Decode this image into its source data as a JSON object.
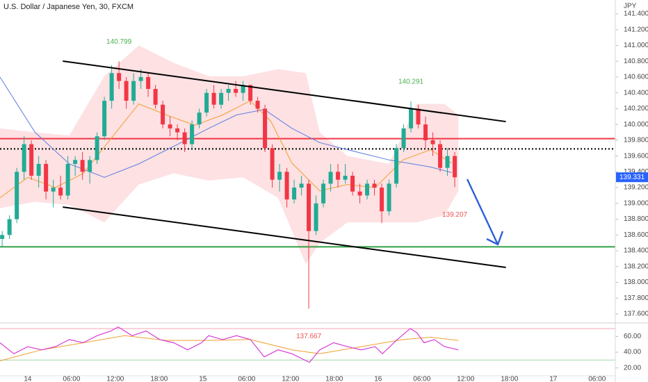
{
  "chart_data": [
    {
      "type": "candlestick",
      "title": "U.S. Dollar / Japanese Yen, 30, FXCM",
      "y_unit": "JPY",
      "x": [
        -3.5,
        -2.5,
        -1.5,
        -0.5,
        0.5,
        1.5,
        2.5,
        3.5,
        4.5,
        5.5,
        6.5,
        7.5,
        8.5,
        9.5,
        10.5,
        11.5,
        12.5,
        13.5,
        14.5,
        15.5,
        16.5,
        17.5,
        18.5,
        19.5,
        20.5,
        21.5,
        22.5,
        23.5,
        24.5,
        25.5,
        26.5,
        27.5,
        28.5,
        29.5,
        30.5,
        31.5,
        32.5,
        33.5,
        34.5,
        35.5,
        36.5,
        37.5,
        38.5,
        39.5,
        40.5,
        41.5,
        42.5,
        43.5,
        44.5,
        45.5,
        46.5,
        47.5,
        48.5,
        49.5,
        50.5,
        51.5,
        52.5,
        53.5,
        54.5,
        55.5,
        56.5,
        57.5,
        58.5
      ],
      "open": [
        138.55,
        138.6,
        138.8,
        139.4,
        139.75,
        139.35,
        139.5,
        139.15,
        139.2,
        139.1,
        139.5,
        139.55,
        139.4,
        139.55,
        139.85,
        140.3,
        140.65,
        140.55,
        140.3,
        140.55,
        140.6,
        140.45,
        140.25,
        140,
        139.95,
        139.9,
        139.75,
        140,
        140.15,
        140.4,
        140.25,
        140.4,
        140.45,
        140.4,
        140.5,
        140.3,
        140.2,
        139.7,
        139.3,
        139.4,
        139.05,
        139.2,
        139.25,
        138.65,
        139,
        139.25,
        139.4,
        139.3,
        139.35,
        139.15,
        139.1,
        139.25,
        139.2,
        138.9,
        139.25,
        139.7,
        139.95,
        140.2,
        140,
        139.8,
        139.75,
        139.45,
        139.6
      ],
      "high": [
        138.65,
        138.85,
        139.45,
        139.85,
        139.8,
        139.6,
        139.55,
        139.3,
        139.35,
        139.6,
        139.6,
        139.65,
        139.6,
        139.9,
        140.35,
        140.75,
        140.799,
        140.6,
        140.65,
        140.7,
        140.65,
        140.5,
        140.3,
        140.1,
        140,
        139.95,
        140.05,
        140.2,
        140.45,
        140.5,
        140.45,
        140.5,
        140.55,
        140.55,
        140.5,
        140.35,
        140.25,
        139.75,
        139.5,
        139.45,
        139.3,
        139.35,
        139.3,
        139.1,
        139.3,
        139.5,
        139.5,
        139.5,
        139.4,
        139.25,
        139.3,
        139.3,
        139.25,
        139.3,
        139.75,
        140,
        140.291,
        140.25,
        140.1,
        139.9,
        139.8,
        139.7,
        139.65
      ],
      "low": [
        138.45,
        138.55,
        138.75,
        139.3,
        139.3,
        139.2,
        139.05,
        138.95,
        139.05,
        139.05,
        139.35,
        139.3,
        139.25,
        139.5,
        139.8,
        140.2,
        140.45,
        140.2,
        140.25,
        140.45,
        140.35,
        140.2,
        139.95,
        139.85,
        139.8,
        139.65,
        139.7,
        139.95,
        140.1,
        140.2,
        140.2,
        140.3,
        140.35,
        140.3,
        140.25,
        140.15,
        139.65,
        139.2,
        139.15,
        138.95,
        139,
        139.1,
        137.667,
        138.6,
        138.95,
        139.15,
        139.2,
        139.25,
        139.1,
        139,
        139.05,
        139.1,
        138.75,
        138.85,
        139.2,
        139.65,
        139.9,
        139.95,
        139.7,
        139.6,
        139.4,
        139.35,
        139.207
      ],
      "close": [
        138.6,
        138.8,
        139.4,
        139.75,
        139.35,
        139.5,
        139.15,
        139.2,
        139.1,
        139.5,
        139.55,
        139.4,
        139.55,
        139.85,
        140.3,
        140.65,
        140.55,
        140.3,
        140.55,
        140.6,
        140.45,
        140.25,
        140,
        139.95,
        139.9,
        139.75,
        140,
        140.15,
        140.4,
        140.25,
        140.4,
        140.45,
        140.4,
        140.5,
        140.3,
        140.2,
        139.7,
        139.3,
        139.4,
        139.05,
        139.2,
        139.25,
        138.65,
        139,
        139.25,
        139.4,
        139.3,
        139.35,
        139.15,
        139.1,
        139.25,
        139.2,
        138.9,
        139.25,
        139.7,
        139.95,
        140.2,
        140,
        139.8,
        139.75,
        139.45,
        139.6,
        139.331
      ],
      "up_color": "#22ab94",
      "down_color": "#f23645",
      "last_price_color": "#2962ff",
      "xlim": [
        -3.8,
        80.5
      ],
      "ylim": [
        137.512,
        141.576
      ],
      "grid": false,
      "yticks": [
        {
          "value": 137.6,
          "label": "137.600"
        },
        {
          "value": 137.8,
          "label": "137.800"
        },
        {
          "value": 138,
          "label": "138.000"
        },
        {
          "value": 138.2,
          "label": "138.200"
        },
        {
          "value": 138.4,
          "label": "138.400"
        },
        {
          "value": 138.6,
          "label": "138.600"
        },
        {
          "value": 138.8,
          "label": "138.800"
        },
        {
          "value": 139,
          "label": "139.000"
        },
        {
          "value": 139.2,
          "label": "139.200"
        },
        {
          "value": 139.4,
          "label": "139.400"
        },
        {
          "value": 139.6,
          "label": "139.600"
        },
        {
          "value": 139.8,
          "label": "139.800"
        },
        {
          "value": 140,
          "label": "140.000"
        },
        {
          "value": 140.2,
          "label": "140.200"
        },
        {
          "value": 140.4,
          "label": "140.400"
        },
        {
          "value": 140.6,
          "label": "140.600"
        },
        {
          "value": 140.8,
          "label": "140.800"
        },
        {
          "value": 141,
          "label": "141.000"
        },
        {
          "value": 141.2,
          "label": "141.200"
        },
        {
          "value": 141.4,
          "label": "141.400"
        }
      ],
      "band": {
        "color": "#fde1e3",
        "x": [
          -3.8,
          1,
          5.7,
          10.5,
          15.2,
          20,
          24.8,
          29.5,
          34.3,
          38.1,
          40,
          43.8,
          49.5,
          53.3,
          57.1,
          59
        ],
        "upper": [
          139.95,
          139.9,
          139.86,
          140.61,
          141.0,
          140.78,
          140.61,
          140.61,
          140.7,
          140.65,
          139.9,
          139.6,
          139.5,
          140.26,
          140.26,
          140.12
        ],
        "lower": [
          138.94,
          139.02,
          138.98,
          138.76,
          139.24,
          139.38,
          139.29,
          139.33,
          139.07,
          138.23,
          138.5,
          138.76,
          138.76,
          138.76,
          138.85,
          139.16
        ]
      },
      "lines": [
        {
          "color": "#5b7fe0",
          "x": [
            -3.8,
            1,
            5.7,
            10.5,
            15.2,
            21,
            24.8,
            28.6,
            32.4,
            36.2,
            40,
            43.8,
            49.5,
            55.2,
            58.1
          ],
          "values": [
            140.6,
            139.9,
            139.5,
            139.33,
            139.5,
            139.77,
            139.95,
            140.12,
            140.19,
            139.95,
            139.77,
            139.68,
            139.55,
            139.46,
            139.39
          ]
        },
        {
          "color": "#f0a030",
          "x": [
            -3.8,
            0,
            3.8,
            7.6,
            11.4,
            15.2,
            19,
            22.9,
            26.7,
            30.5,
            33.3,
            36.2,
            40,
            43.8,
            47.6,
            51.4,
            55.2,
            58.1
          ],
          "values": [
            139.07,
            139.33,
            139.2,
            139.38,
            139.82,
            140.26,
            140.12,
            139.99,
            140.12,
            140.3,
            140.04,
            139.51,
            139.16,
            139.24,
            139.2,
            139.55,
            139.68,
            139.51
          ]
        }
      ],
      "levels": [
        {
          "value": 139.82,
          "color": "#f23645",
          "style": "solid"
        },
        {
          "value": 139.69,
          "color": "#111111",
          "style": "dotted"
        },
        {
          "value": 138.45,
          "color": "#2ea043",
          "style": "solid"
        }
      ],
      "trendlines": [
        {
          "color": "#000000",
          "x": [
            4.8,
            65.5
          ],
          "values": [
            140.802,
            140.036
          ]
        },
        {
          "color": "#000000",
          "x": [
            4.8,
            65.5
          ],
          "values": [
            138.954,
            138.189
          ]
        }
      ],
      "annotations": [
        {
          "x": 12.5,
          "value": 140.799,
          "position": "above",
          "color": "#4caf50"
        },
        {
          "x": 52.5,
          "value": 140.291,
          "position": "above",
          "color": "#4caf50"
        },
        {
          "x": 58.5,
          "value": 139.207,
          "position": "below",
          "color": "#ef5350"
        },
        {
          "x": 38.5,
          "value": 137.667,
          "position": "below",
          "color": "#ef5350"
        }
      ]
    },
    {
      "type": "rsi_panel",
      "x": [
        -3.8,
        -1.9,
        0,
        1.9,
        3.8,
        5.7,
        7.6,
        9.5,
        11.4,
        12.4,
        14.3,
        16.2,
        18.1,
        20,
        21.9,
        23.8,
        24.8,
        26.7,
        28.6,
        30.5,
        32.4,
        34.3,
        36.2,
        38.6,
        40,
        41.9,
        43.8,
        45.7,
        47.6,
        48.6,
        50.5,
        52.4,
        53.3,
        54.3,
        55.7,
        57.1,
        59
      ],
      "values": [
        52,
        38,
        47,
        43,
        47,
        56,
        52,
        61,
        67,
        72,
        61,
        67,
        56,
        52,
        43,
        52,
        61,
        56,
        61,
        56,
        34,
        43,
        38,
        27,
        43,
        52,
        47,
        43,
        47,
        38,
        55,
        70,
        65,
        52,
        56,
        47,
        43
      ],
      "color": "#d63bd6",
      "ma": {
        "color": "#f0a030",
        "x": [
          -3.8,
          1.9,
          7.6,
          13.3,
          19,
          24.8,
          30.5,
          36.2,
          40,
          45.7,
          51.4,
          55.2,
          59
        ],
        "values": [
          29,
          43,
          52,
          61,
          55,
          55,
          56,
          43,
          38,
          47,
          56,
          59,
          55
        ]
      },
      "levels": [
        {
          "value": 70,
          "color": "#f5a3b5"
        },
        {
          "value": 30,
          "color": "#9fd8a0"
        }
      ],
      "xlim": [
        -3.8,
        80.5
      ],
      "ylim": [
        10.9,
        74.5
      ],
      "yticks": [
        {
          "value": 20,
          "label": "20.00"
        },
        {
          "value": 40,
          "label": "40.00"
        },
        {
          "value": 60,
          "label": "60.00"
        }
      ],
      "xticks": [
        {
          "value": 0,
          "label": "14"
        },
        {
          "value": 6,
          "label": "06:00"
        },
        {
          "value": 12,
          "label": "12:00"
        },
        {
          "value": 18,
          "label": "18:00"
        },
        {
          "value": 24,
          "label": "15"
        },
        {
          "value": 30,
          "label": "06:00"
        },
        {
          "value": 36,
          "label": "12:00"
        },
        {
          "value": 42,
          "label": "18:00"
        },
        {
          "value": 48,
          "label": "16"
        },
        {
          "value": 54,
          "label": "06:00"
        },
        {
          "value": 60,
          "label": "12:00"
        },
        {
          "value": 66,
          "label": "18:00"
        },
        {
          "value": 72,
          "label": "17"
        },
        {
          "value": 78,
          "label": "06:00"
        }
      ]
    }
  ]
}
